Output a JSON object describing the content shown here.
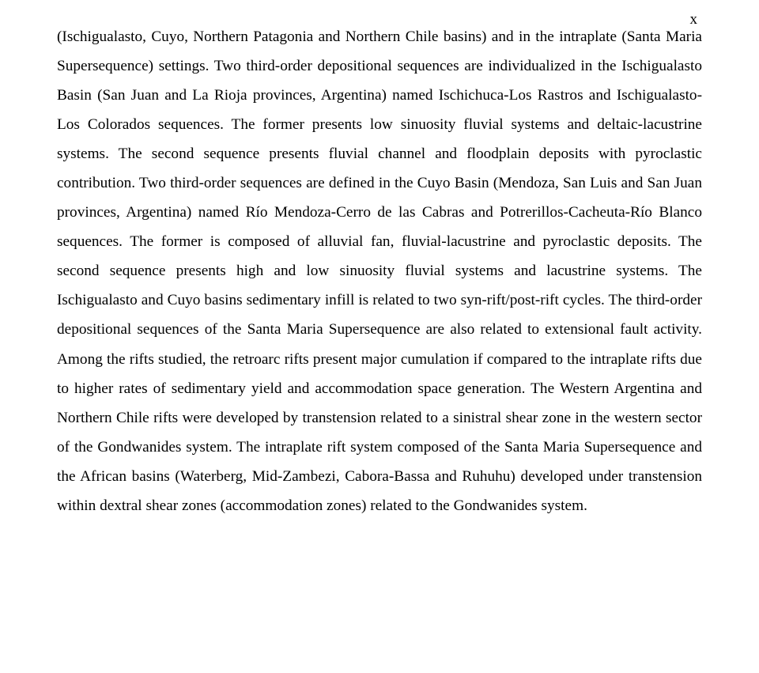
{
  "page_indicator": "x",
  "body": "(Ischigualasto, Cuyo, Northern Patagonia and Northern Chile basins) and in the intraplate (Santa Maria Supersequence) settings. Two third-order depositional sequences are individualized in the Ischigualasto Basin (San Juan and La Rioja provinces, Argentina) named Ischichuca-Los Rastros and Ischigualasto-Los Colorados sequences. The former presents low sinuosity fluvial systems and deltaic-lacustrine systems. The second sequence presents fluvial channel and floodplain deposits with pyroclastic contribution. Two third-order sequences are defined in the Cuyo Basin (Mendoza, San Luis and San Juan provinces, Argentina) named Río Mendoza-Cerro de las Cabras and Potrerillos-Cacheuta-Río Blanco sequences. The former is composed of alluvial fan, fluvial-lacustrine and pyroclastic deposits. The second sequence presents high and low sinuosity fluvial systems and lacustrine systems. The Ischigualasto and Cuyo basins sedimentary infill is related to two syn-rift/post-rift cycles. The third-order depositional sequences of the Santa Maria Supersequence are also related to extensional fault activity. Among the rifts studied, the retroarc rifts present major cumulation if compared to the intraplate rifts due to higher rates of sedimentary yield and accommodation space generation. The Western Argentina and Northern Chile rifts were developed by transtension related to a sinistral shear zone in the western sector of the Gondwanides system. The intraplate rift system composed of the Santa Maria Supersequence and the African basins (Waterberg, Mid-Zambezi, Cabora-Bassa and Ruhuhu) developed under transtension within dextral shear zones (accommodation zones) related to the Gondwanides system.",
  "typography": {
    "font_family": "Times New Roman",
    "body_fontsize_pt": 14,
    "line_height": 1.9,
    "text_color": "#000000",
    "background_color": "#ffffff",
    "alignment": "justify"
  }
}
